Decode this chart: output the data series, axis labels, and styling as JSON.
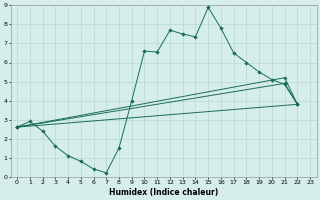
{
  "xlabel": "Humidex (Indice chaleur)",
  "xlim": [
    -0.5,
    23.5
  ],
  "ylim": [
    0,
    9
  ],
  "xticks": [
    0,
    1,
    2,
    3,
    4,
    5,
    6,
    7,
    8,
    9,
    10,
    11,
    12,
    13,
    14,
    15,
    16,
    17,
    18,
    19,
    20,
    21,
    22,
    23
  ],
  "yticks": [
    0,
    1,
    2,
    3,
    4,
    5,
    6,
    7,
    8,
    9
  ],
  "bg_color": "#d6eeea",
  "line_color": "#1a6b5a",
  "grid_color": "#b8d8d2",
  "main_line": {
    "x": [
      0,
      1,
      2,
      3,
      4,
      5,
      6,
      7,
      8,
      9,
      10,
      11,
      12,
      13,
      14,
      15,
      16,
      17,
      18,
      19,
      20,
      21,
      22
    ],
    "y": [
      2.6,
      2.9,
      2.4,
      1.6,
      1.1,
      0.8,
      0.4,
      0.2,
      1.5,
      4.0,
      6.6,
      6.55,
      7.7,
      7.5,
      7.35,
      8.9,
      7.8,
      6.5,
      6.0,
      5.5,
      5.1,
      4.85,
      3.8
    ]
  },
  "trend_lines": [
    {
      "x": [
        0,
        21,
        22
      ],
      "y": [
        2.6,
        5.2,
        3.8
      ]
    },
    {
      "x": [
        0,
        21,
        22
      ],
      "y": [
        2.6,
        4.9,
        3.8
      ]
    },
    {
      "x": [
        0,
        22
      ],
      "y": [
        2.6,
        3.8
      ]
    }
  ]
}
